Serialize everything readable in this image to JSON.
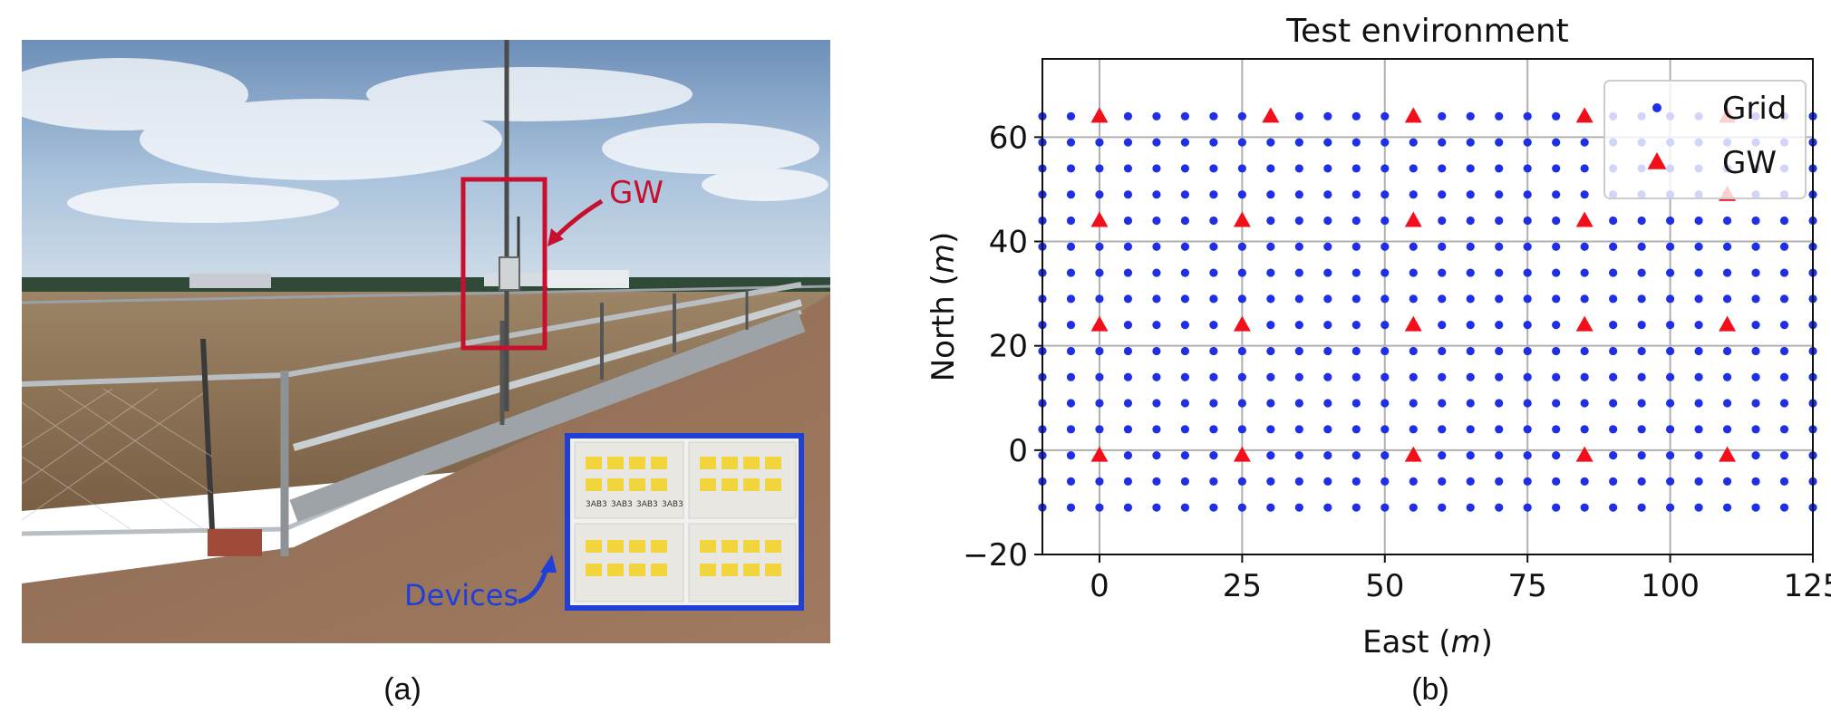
{
  "captions": {
    "a": "(a)",
    "b": "(b)"
  },
  "photo": {
    "gw_label": "GW",
    "devices_label": "Devices",
    "gw_color": "#c8102e",
    "devices_color": "#1f3fd6",
    "device_tags": [
      "3AB3",
      "3AB3",
      "3AB3",
      "3AB3"
    ]
  },
  "chart_data": {
    "type": "scatter",
    "title": "Test environment",
    "xlabel": "East",
    "xlabel_unit": "m",
    "ylabel": "North",
    "ylabel_unit": "m",
    "xlim": [
      -10,
      125
    ],
    "ylim": [
      -20,
      75
    ],
    "xticks": [
      0,
      25,
      50,
      75,
      100,
      125
    ],
    "yticks": [
      -20,
      0,
      20,
      40,
      60
    ],
    "grid": true,
    "legend_position": "top-right",
    "grid_points": {
      "x_start": -10,
      "x_step": 5,
      "x_count": 28,
      "y_start": -11,
      "y_step": 5,
      "y_count": 16,
      "description": "regular grid of points from x=-10..125 and y=-11..64 every 5 m"
    },
    "series": [
      {
        "name": "Grid",
        "marker": "circle",
        "color": "#1f2fe6"
      },
      {
        "name": "GW",
        "marker": "triangle",
        "color": "#f20f1a",
        "points": [
          [
            0,
            64
          ],
          [
            30,
            64
          ],
          [
            55,
            64
          ],
          [
            85,
            64
          ],
          [
            110,
            64
          ],
          [
            0,
            44
          ],
          [
            25,
            44
          ],
          [
            55,
            44
          ],
          [
            85,
            44
          ],
          [
            110,
            49
          ],
          [
            0,
            24
          ],
          [
            25,
            24
          ],
          [
            55,
            24
          ],
          [
            85,
            24
          ],
          [
            110,
            24
          ],
          [
            0,
            -1
          ],
          [
            25,
            -1
          ],
          [
            55,
            -1
          ],
          [
            85,
            -1
          ],
          [
            110,
            -1
          ]
        ]
      }
    ]
  }
}
